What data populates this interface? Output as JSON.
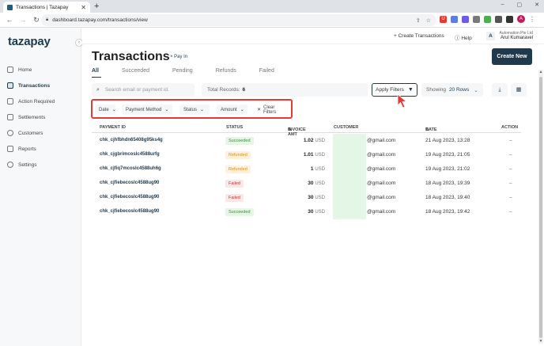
{
  "browser": {
    "tab_title": "Transactions | Tazapay",
    "tab_close": "✕",
    "new_tab": "+",
    "url": "dashboard.tazapay.com/transactions/view",
    "window_controls": [
      "–",
      "▢",
      "✕"
    ],
    "chrome_avatar": "A",
    "extensions": [
      {
        "label": "U",
        "color": "#e53935"
      },
      {
        "label": "",
        "color": "#5e7ce2"
      },
      {
        "label": "",
        "color": "#6c5ce7"
      },
      {
        "label": "",
        "color": "#7a7a7a"
      },
      {
        "label": "",
        "color": "#4caf50"
      },
      {
        "label": "",
        "color": "#555"
      },
      {
        "label": "",
        "color": "#333"
      }
    ]
  },
  "sidebar": {
    "logo": "tazapay",
    "collapse_icon": "‹",
    "items": [
      {
        "label": "Home",
        "active": false
      },
      {
        "label": "Transactions",
        "active": true
      },
      {
        "label": "Action Required",
        "active": false
      },
      {
        "label": "Settlements",
        "active": false
      },
      {
        "label": "Customers",
        "active": false
      },
      {
        "label": "Reports",
        "active": false
      },
      {
        "label": "Settings",
        "active": false
      }
    ]
  },
  "topbar": {
    "create_transactions": "+ Create Transactions",
    "help": "Help",
    "avatar_letter": "A",
    "org_name": "Automation Pte Ltd",
    "user_name": "Arul Kumaravel"
  },
  "page": {
    "title": "Transactions",
    "subtitle": "× Pay In",
    "create_new": "Create New",
    "tabs": [
      "All",
      "Succeeded",
      "Pending",
      "Refunds",
      "Failed"
    ],
    "active_tab": "All"
  },
  "toolbar": {
    "search_placeholder": "Search email or payment id.",
    "total_label": "Total Records:",
    "total_value": "6",
    "apply_filters": "Apply Filters",
    "showing_label": "Showing",
    "showing_value": "20 Rows"
  },
  "filters": {
    "date": "Date",
    "payment_method": "Payment Method",
    "status": "Status",
    "amount": "Amount",
    "clear": "Clear Filters"
  },
  "table": {
    "headers": {
      "payment_id": "PAYMENT ID",
      "status": "STATUS",
      "invoice_amt": "INVOICE AMT",
      "customer": "CUSTOMER",
      "date": "DATE",
      "action": "ACTION"
    },
    "rows": [
      {
        "payment_id": "chk_cjhfbhdn65408g95ks4g",
        "status": "Succeeded",
        "amount": "1.02",
        "currency": "USD",
        "customer": "@gmail.com",
        "date": "21 Aug 2023, 13:28",
        "action": "–"
      },
      {
        "payment_id": "chk_cjgbrimcoslc4588urfg",
        "status": "Refunded",
        "amount": "1.01",
        "currency": "USD",
        "customer": "@gmail.com",
        "date": "19 Aug 2023, 21:05",
        "action": "–"
      },
      {
        "payment_id": "chk_cjfiq7mcoslc4588uh6g",
        "status": "Refunded",
        "amount": "1",
        "currency": "USD",
        "customer": "@gmail.com",
        "date": "19 Aug 2023, 21:02",
        "action": "–"
      },
      {
        "payment_id": "chk_cjfiebecoslc4588ug90",
        "status": "Failed",
        "amount": "30",
        "currency": "USD",
        "customer": "@gmail.com",
        "date": "18 Aug 2023, 19:39",
        "action": "–"
      },
      {
        "payment_id": "chk_cjfiebecoslc4588ug90",
        "status": "Failed",
        "amount": "30",
        "currency": "USD",
        "customer": "@gmail.com",
        "date": "18 Aug 2023, 19:40",
        "action": "–"
      },
      {
        "payment_id": "chk_cjfiebecoslc4588ug90",
        "status": "Succeeded",
        "amount": "30",
        "currency": "USD",
        "customer": "@gmail.com",
        "date": "18 Aug 2023, 19:42",
        "action": "–"
      }
    ]
  },
  "colors": {
    "brand": "#1e3a4c",
    "filter_highlight": "#e53935",
    "succeeded": "#3c8c3c",
    "refunded": "#d88a1a",
    "failed": "#d32f2f"
  }
}
